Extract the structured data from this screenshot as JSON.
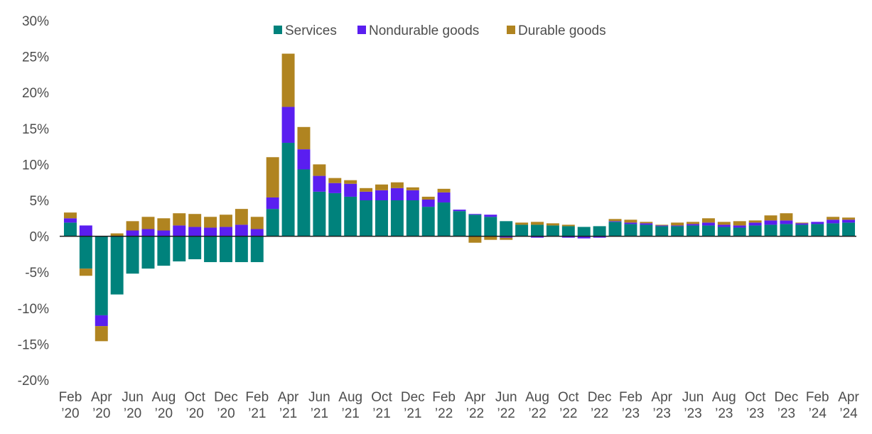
{
  "chart_data": {
    "type": "bar",
    "stacked": true,
    "ylim": [
      -20,
      30
    ],
    "yticks": [
      30,
      25,
      20,
      15,
      10,
      5,
      0,
      -5,
      -10,
      -15,
      -20
    ],
    "ytick_labels": [
      "30%",
      "25%",
      "20%",
      "15%",
      "10%",
      "5%",
      "0%",
      "-5%",
      "-10%",
      "-15%",
      "-20%"
    ],
    "legend_position": "top-center",
    "grid": false,
    "categories": [
      "Feb '20",
      "Mar '20",
      "Apr '20",
      "May '20",
      "Jun '20",
      "Jul '20",
      "Aug '20",
      "Sep '20",
      "Oct '20",
      "Nov '20",
      "Dec '20",
      "Jan '21",
      "Feb '21",
      "Mar '21",
      "Apr '21",
      "May '21",
      "Jun '21",
      "Jul '21",
      "Aug '21",
      "Sep '21",
      "Oct '21",
      "Nov '21",
      "Dec '21",
      "Jan '22",
      "Feb '22",
      "Mar '22",
      "Apr '22",
      "May '22",
      "Jun '22",
      "Jul '22",
      "Aug '22",
      "Sep '22",
      "Oct '22",
      "Nov '22",
      "Dec '22",
      "Jan '23",
      "Feb '23",
      "Mar '23",
      "Apr '23",
      "May '23",
      "Jun '23",
      "Jul '23",
      "Aug '23",
      "Sep '23",
      "Oct '23",
      "Nov '23",
      "Dec '23",
      "Jan '24",
      "Feb '24",
      "Mar '24",
      "Apr '24"
    ],
    "xtick_labels": [
      {
        "index": 0,
        "line1": "Feb",
        "line2": "’20"
      },
      {
        "index": 2,
        "line1": "Apr",
        "line2": "’20"
      },
      {
        "index": 4,
        "line1": "Jun",
        "line2": "’20"
      },
      {
        "index": 6,
        "line1": "Aug",
        "line2": "’20"
      },
      {
        "index": 8,
        "line1": "Oct",
        "line2": "’20"
      },
      {
        "index": 10,
        "line1": "Dec",
        "line2": "’20"
      },
      {
        "index": 12,
        "line1": "Feb",
        "line2": "’21"
      },
      {
        "index": 14,
        "line1": "Apr",
        "line2": "’21"
      },
      {
        "index": 16,
        "line1": "Jun",
        "line2": "’21"
      },
      {
        "index": 18,
        "line1": "Aug",
        "line2": "’21"
      },
      {
        "index": 20,
        "line1": "Oct",
        "line2": "’21"
      },
      {
        "index": 22,
        "line1": "Dec",
        "line2": "’21"
      },
      {
        "index": 24,
        "line1": "Feb",
        "line2": "’22"
      },
      {
        "index": 26,
        "line1": "Apr",
        "line2": "’22"
      },
      {
        "index": 28,
        "line1": "Jun",
        "line2": "’22"
      },
      {
        "index": 30,
        "line1": "Aug",
        "line2": "’22"
      },
      {
        "index": 32,
        "line1": "Oct",
        "line2": "’22"
      },
      {
        "index": 34,
        "line1": "Dec",
        "line2": "’22"
      },
      {
        "index": 36,
        "line1": "Feb",
        "line2": "’23"
      },
      {
        "index": 38,
        "line1": "Apr",
        "line2": "’23"
      },
      {
        "index": 40,
        "line1": "Jun",
        "line2": "’23"
      },
      {
        "index": 42,
        "line1": "Aug",
        "line2": "’23"
      },
      {
        "index": 44,
        "line1": "Oct",
        "line2": "’23"
      },
      {
        "index": 46,
        "line1": "Dec",
        "line2": "’23"
      },
      {
        "index": 48,
        "line1": "Feb",
        "line2": "’24"
      },
      {
        "index": 50,
        "line1": "Apr",
        "line2": "’24"
      }
    ],
    "series": [
      {
        "name": "Services",
        "color": "#00827c",
        "values": [
          1.9,
          -4.5,
          -11.0,
          -8.1,
          -5.2,
          -4.5,
          -4.1,
          -3.5,
          -3.2,
          -3.6,
          -3.6,
          -3.6,
          -3.6,
          3.8,
          13.0,
          9.3,
          6.2,
          6.0,
          5.5,
          5.0,
          5.0,
          5.0,
          5.0,
          4.1,
          4.7,
          3.5,
          3.0,
          2.7,
          2.1,
          1.6,
          1.6,
          1.5,
          1.4,
          1.3,
          1.4,
          2.0,
          1.7,
          1.6,
          1.4,
          1.4,
          1.5,
          1.5,
          1.3,
          1.2,
          1.5,
          1.6,
          1.7,
          1.6,
          1.7,
          1.8,
          1.9
        ]
      },
      {
        "name": "Nondurable goods",
        "color": "#5a1ef0",
        "values": [
          0.6,
          1.5,
          -1.5,
          0.0,
          0.8,
          1.0,
          0.8,
          1.5,
          1.3,
          1.2,
          1.3,
          1.6,
          1.0,
          1.6,
          5.0,
          2.8,
          2.2,
          1.4,
          1.8,
          1.2,
          1.4,
          1.7,
          1.4,
          1.0,
          1.4,
          0.2,
          0.1,
          0.3,
          -0.2,
          0.0,
          -0.2,
          0.0,
          -0.2,
          -0.3,
          -0.2,
          0.1,
          0.2,
          0.2,
          0.1,
          0.1,
          0.2,
          0.4,
          0.3,
          0.3,
          0.4,
          0.6,
          0.5,
          0.2,
          0.3,
          0.5,
          0.4
        ]
      },
      {
        "name": "Durable goods",
        "color": "#b08420",
        "values": [
          0.8,
          -1.0,
          -2.1,
          0.4,
          1.3,
          1.7,
          1.7,
          1.7,
          1.8,
          1.5,
          1.7,
          2.2,
          1.7,
          5.6,
          7.4,
          3.1,
          1.6,
          0.7,
          0.5,
          0.5,
          0.8,
          0.8,
          0.4,
          0.4,
          0.5,
          0.0,
          -0.9,
          -0.5,
          -0.3,
          0.3,
          0.4,
          0.3,
          0.2,
          0.0,
          0.0,
          0.3,
          0.4,
          0.2,
          0.1,
          0.4,
          0.3,
          0.6,
          0.4,
          0.6,
          0.3,
          0.7,
          1.0,
          0.1,
          0.0,
          0.4,
          0.3
        ]
      }
    ]
  }
}
